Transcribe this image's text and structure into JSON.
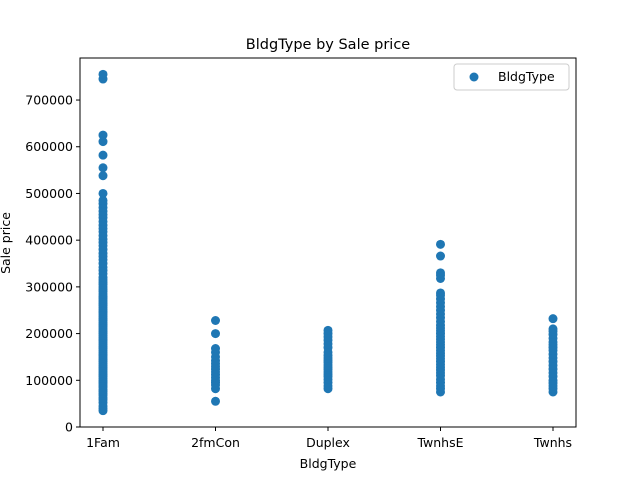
{
  "chart_data": {
    "type": "scatter",
    "title": "BldgType by Sale price",
    "xlabel": "BldgType",
    "ylabel": "Sale price",
    "categories": [
      "1Fam",
      "2fmCon",
      "Duplex",
      "TwnhsE",
      "Twnhs"
    ],
    "ylim": [
      0,
      790000
    ],
    "yticks": [
      0,
      100000,
      200000,
      300000,
      400000,
      500000,
      600000,
      700000
    ],
    "grid": false,
    "legend_position": "top-right",
    "series": [
      {
        "name": "BldgType",
        "color": "#1f77b4",
        "points": [
          {
            "x": "1Fam",
            "y": [
              35000,
              40000,
              45000,
              52000,
              58000,
              62000,
              68000,
              72000,
              76000,
              80000,
              85000,
              88000,
              92000,
              96000,
              100000,
              104000,
              108000,
              112000,
              116000,
              120000,
              124000,
              128000,
              132000,
              136000,
              140000,
              144000,
              148000,
              152000,
              156000,
              160000,
              164000,
              168000,
              172000,
              176000,
              180000,
              184000,
              188000,
              192000,
              196000,
              200000,
              204000,
              208000,
              212000,
              216000,
              220000,
              224000,
              228000,
              232000,
              236000,
              240000,
              244000,
              248000,
              252000,
              256000,
              260000,
              264000,
              268000,
              272000,
              276000,
              280000,
              285000,
              290000,
              295000,
              300000,
              305000,
              310000,
              315000,
              320000,
              328000,
              335000,
              342000,
              350000,
              358000,
              365000,
              372000,
              380000,
              388000,
              395000,
              402000,
              410000,
              418000,
              425000,
              432000,
              440000,
              448000,
              455000,
              462000,
              470000,
              478000,
              485000,
              500000,
              538000,
              555000,
              582000,
              611000,
              625000,
              745000,
              755000
            ]
          },
          {
            "x": "2fmCon",
            "y": [
              55000,
              82000,
              90000,
              95000,
              100000,
              106000,
              112000,
              118000,
              124000,
              130000,
              136000,
              142000,
              150000,
              160000,
              168000,
              200000,
              228000
            ]
          },
          {
            "x": "Duplex",
            "y": [
              82000,
              88000,
              95000,
              102000,
              108000,
              113000,
              118000,
              123000,
              128000,
              133000,
              138000,
              143000,
              148000,
              153000,
              160000,
              170000,
              178000,
              186000,
              193000,
              200000,
              207000
            ]
          },
          {
            "x": "TwnhsE",
            "y": [
              75000,
              82000,
              88000,
              95000,
              102000,
              110000,
              116000,
              122000,
              128000,
              134000,
              140000,
              146000,
              152000,
              158000,
              164000,
              170000,
              176000,
              182000,
              188000,
              194000,
              200000,
              206000,
              212000,
              218000,
              226000,
              234000,
              242000,
              250000,
              258000,
              266000,
              274000,
              282000,
              287000,
              318000,
              325000,
              330000,
              366000,
              391000
            ]
          },
          {
            "x": "Twnhs",
            "y": [
              75000,
              82000,
              88000,
              94000,
              100000,
              108000,
              116000,
              124000,
              132000,
              140000,
              148000,
              156000,
              164000,
              170000,
              176000,
              182000,
              190000,
              198000,
              205000,
              210000,
              232000
            ]
          }
        ]
      }
    ]
  }
}
